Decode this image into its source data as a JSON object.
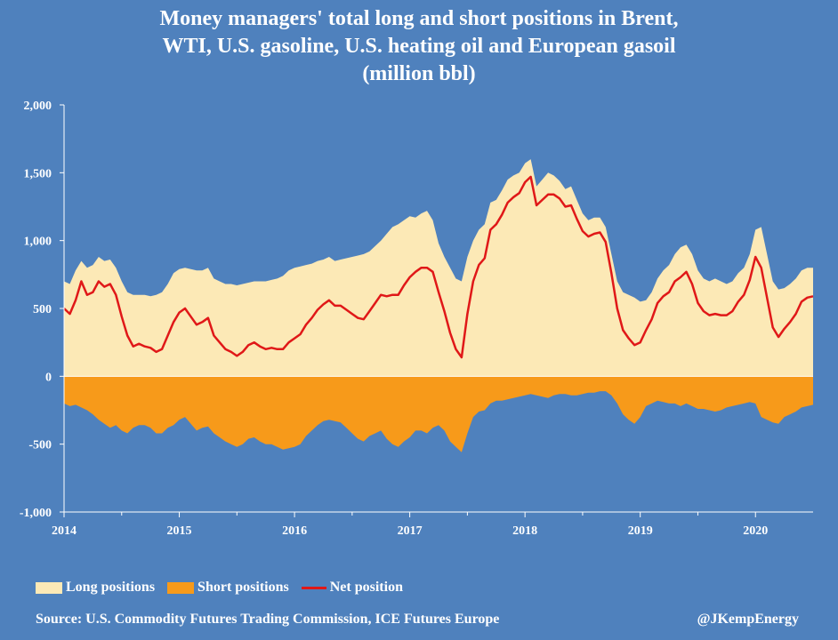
{
  "chart_data": {
    "type": "area",
    "title_lines": [
      "Money managers' total long and short positions in Brent,",
      "WTI, U.S. gasoline, U.S. heating oil and European gasoil",
      "(million bbl)"
    ],
    "ylim": [
      -1000,
      2000
    ],
    "yticks": [
      -1000,
      -500,
      0,
      500,
      1000,
      1500,
      2000
    ],
    "ytick_labels": [
      "-1,000",
      "-500",
      "0",
      "500",
      "1,000",
      "1,500",
      "2,000"
    ],
    "xlim": [
      2014.0,
      2020.5
    ],
    "xticks": [
      2014,
      2015,
      2016,
      2017,
      2018,
      2019,
      2020
    ],
    "xtick_labels": [
      "2014",
      "2015",
      "2016",
      "2017",
      "2018",
      "2019",
      "2020"
    ],
    "grid": false,
    "legend_position": "bottom-left",
    "x": [
      2014.0,
      2014.05,
      2014.1,
      2014.15,
      2014.2,
      2014.25,
      2014.3,
      2014.35,
      2014.4,
      2014.45,
      2014.5,
      2014.55,
      2014.6,
      2014.65,
      2014.7,
      2014.75,
      2014.8,
      2014.85,
      2014.9,
      2014.95,
      2015.0,
      2015.05,
      2015.1,
      2015.15,
      2015.2,
      2015.25,
      2015.3,
      2015.35,
      2015.4,
      2015.45,
      2015.5,
      2015.55,
      2015.6,
      2015.65,
      2015.7,
      2015.75,
      2015.8,
      2015.85,
      2015.9,
      2015.95,
      2016.0,
      2016.05,
      2016.1,
      2016.15,
      2016.2,
      2016.25,
      2016.3,
      2016.35,
      2016.4,
      2016.45,
      2016.5,
      2016.55,
      2016.6,
      2016.65,
      2016.7,
      2016.75,
      2016.8,
      2016.85,
      2016.9,
      2016.95,
      2017.0,
      2017.05,
      2017.1,
      2017.15,
      2017.2,
      2017.25,
      2017.3,
      2017.35,
      2017.4,
      2017.45,
      2017.5,
      2017.55,
      2017.6,
      2017.65,
      2017.7,
      2017.75,
      2017.8,
      2017.85,
      2017.9,
      2017.95,
      2018.0,
      2018.05,
      2018.1,
      2018.15,
      2018.2,
      2018.25,
      2018.3,
      2018.35,
      2018.4,
      2018.45,
      2018.5,
      2018.55,
      2018.6,
      2018.65,
      2018.7,
      2018.75,
      2018.8,
      2018.85,
      2018.9,
      2018.95,
      2019.0,
      2019.05,
      2019.1,
      2019.15,
      2019.2,
      2019.25,
      2019.3,
      2019.35,
      2019.4,
      2019.45,
      2019.5,
      2019.55,
      2019.6,
      2019.65,
      2019.7,
      2019.75,
      2019.8,
      2019.85,
      2019.9,
      2019.95,
      2020.0,
      2020.05,
      2020.1,
      2020.15,
      2020.2,
      2020.25,
      2020.3,
      2020.35,
      2020.4,
      2020.45,
      2020.5
    ],
    "series": [
      {
        "name": "Long positions",
        "color": "#fce9b6",
        "style": "area",
        "values": [
          700,
          680,
          780,
          850,
          800,
          820,
          880,
          850,
          860,
          800,
          700,
          620,
          600,
          600,
          600,
          590,
          600,
          620,
          680,
          760,
          790,
          800,
          790,
          780,
          780,
          800,
          720,
          700,
          680,
          680,
          670,
          680,
          690,
          700,
          700,
          700,
          710,
          720,
          740,
          780,
          800,
          810,
          820,
          830,
          850,
          860,
          880,
          850,
          860,
          870,
          880,
          890,
          900,
          920,
          960,
          1000,
          1050,
          1100,
          1120,
          1150,
          1180,
          1170,
          1200,
          1220,
          1150,
          980,
          880,
          800,
          720,
          700,
          880,
          1000,
          1080,
          1120,
          1280,
          1300,
          1370,
          1450,
          1480,
          1500,
          1570,
          1600,
          1400,
          1450,
          1500,
          1480,
          1440,
          1380,
          1400,
          1300,
          1200,
          1150,
          1170,
          1170,
          1100,
          900,
          700,
          620,
          600,
          580,
          550,
          560,
          620,
          720,
          780,
          820,
          900,
          950,
          970,
          900,
          780,
          720,
          700,
          720,
          700,
          680,
          700,
          760,
          800,
          900,
          1080,
          1100,
          900,
          700,
          640,
          650,
          680,
          720,
          780,
          800,
          800
        ]
      },
      {
        "name": "Short positions",
        "color": "#f79a1a",
        "style": "area",
        "values": [
          -200,
          -220,
          -210,
          -230,
          -250,
          -280,
          -320,
          -350,
          -380,
          -360,
          -400,
          -420,
          -380,
          -360,
          -360,
          -380,
          -420,
          -420,
          -380,
          -360,
          -320,
          -300,
          -350,
          -400,
          -380,
          -370,
          -420,
          -450,
          -480,
          -500,
          -520,
          -500,
          -460,
          -450,
          -480,
          -500,
          -500,
          -520,
          -540,
          -530,
          -520,
          -500,
          -440,
          -400,
          -360,
          -330,
          -320,
          -330,
          -340,
          -380,
          -420,
          -460,
          -480,
          -440,
          -420,
          -400,
          -460,
          -500,
          -520,
          -480,
          -450,
          -400,
          -400,
          -420,
          -380,
          -360,
          -400,
          -480,
          -520,
          -560,
          -420,
          -300,
          -260,
          -250,
          -200,
          -180,
          -180,
          -170,
          -160,
          -150,
          -140,
          -130,
          -140,
          -150,
          -160,
          -140,
          -130,
          -130,
          -140,
          -140,
          -130,
          -120,
          -120,
          -110,
          -110,
          -140,
          -200,
          -280,
          -320,
          -350,
          -300,
          -220,
          -200,
          -180,
          -190,
          -200,
          -200,
          -220,
          -200,
          -220,
          -240,
          -240,
          -250,
          -260,
          -250,
          -230,
          -220,
          -210,
          -200,
          -190,
          -200,
          -300,
          -320,
          -340,
          -350,
          -300,
          -280,
          -260,
          -230,
          -220,
          -210
        ]
      },
      {
        "name": "Net position",
        "color": "#e01818",
        "style": "line",
        "values": [
          500,
          460,
          560,
          700,
          600,
          620,
          700,
          660,
          680,
          600,
          440,
          300,
          220,
          240,
          220,
          210,
          180,
          200,
          300,
          400,
          470,
          500,
          440,
          380,
          400,
          430,
          300,
          250,
          200,
          180,
          150,
          180,
          230,
          250,
          220,
          200,
          210,
          200,
          200,
          250,
          280,
          310,
          380,
          430,
          490,
          530,
          560,
          520,
          520,
          490,
          460,
          430,
          420,
          480,
          540,
          600,
          590,
          600,
          600,
          670,
          730,
          770,
          800,
          800,
          770,
          620,
          480,
          320,
          200,
          140,
          460,
          700,
          820,
          870,
          1080,
          1120,
          1190,
          1280,
          1320,
          1350,
          1430,
          1470,
          1260,
          1300,
          1340,
          1340,
          1310,
          1250,
          1260,
          1160,
          1070,
          1030,
          1050,
          1060,
          990,
          760,
          500,
          340,
          280,
          230,
          250,
          340,
          420,
          540,
          590,
          620,
          700,
          730,
          770,
          680,
          540,
          480,
          450,
          460,
          450,
          450,
          480,
          550,
          600,
          710,
          880,
          800,
          580,
          360,
          290,
          350,
          400,
          460,
          550,
          580,
          590
        ]
      }
    ]
  },
  "legend": {
    "long_label": "Long positions",
    "short_label": "Short positions",
    "net_label": "Net position"
  },
  "footer": {
    "source": "Source: U.S. Commodity Futures Trading Commission, ICE Futures Europe",
    "credit": "@JKempEnergy"
  },
  "colors": {
    "background": "#4f81bd",
    "long": "#fce9b6",
    "short": "#f79a1a",
    "net": "#e01818",
    "axis": "#ffffff"
  }
}
